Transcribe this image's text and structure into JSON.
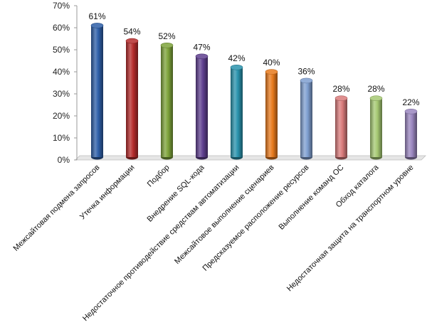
{
  "chart_data": {
    "type": "bar",
    "title": "",
    "xlabel": "",
    "ylabel": "",
    "ylim": [
      0,
      70
    ],
    "yticks": [
      "0%",
      "10%",
      "20%",
      "30%",
      "40%",
      "50%",
      "60%",
      "70%"
    ],
    "grid": false,
    "legend": "none",
    "categories": [
      "Межсайтовая подмена запросов",
      "Утечка информации",
      "Подбор",
      "Внедрение SQL-кода",
      "Недостаточное противодействие средствам автоматизации",
      "Межсайтовое выполнение сценариев",
      "Предсказуемое расположение ресурсов",
      "Выполнение команд ОС",
      "Обход каталога",
      "Недостаточная защита на транспортном уровне"
    ],
    "values": [
      61,
      54,
      52,
      47,
      42,
      40,
      36,
      28,
      28,
      22
    ],
    "data_labels": [
      "61%",
      "54%",
      "52%",
      "47%",
      "42%",
      "40%",
      "36%",
      "28%",
      "28%",
      "22%"
    ],
    "colors": [
      "#2e5fa8",
      "#b52b2b",
      "#7ea33a",
      "#5f3f8f",
      "#2a93ad",
      "#e87a1c",
      "#7f9fd0",
      "#d97b7b",
      "#a6c973",
      "#9a86bf"
    ]
  }
}
